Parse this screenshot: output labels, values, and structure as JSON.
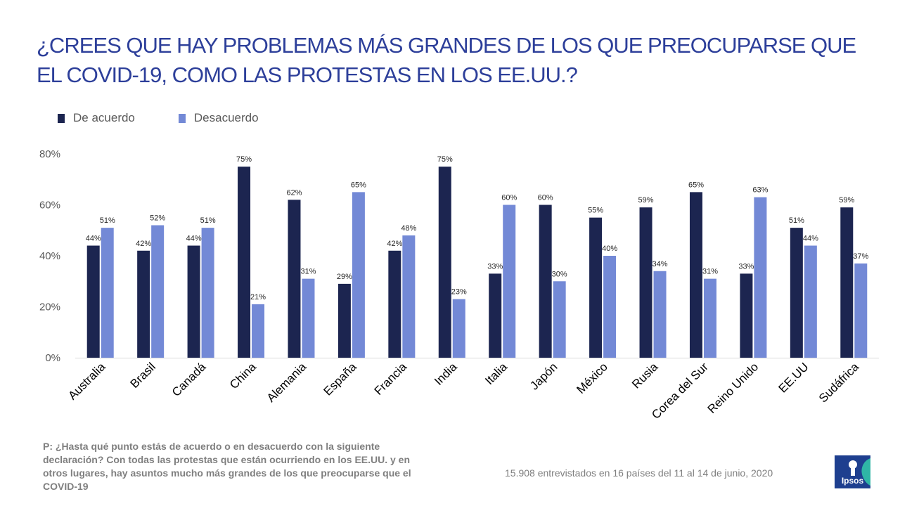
{
  "title": "¿CREES QUE HAY PROBLEMAS MÁS GRANDES DE LOS QUE PREOCUPARSE QUE EL COVID-19, COMO LAS PROTESTAS EN LOS EE.UU.?",
  "footnote": "P: ¿Hasta qué punto estás de acuerdo o en desacuerdo con la siguiente declaración? Con todas las protestas que están ocurriendo en los EE.UU. y en otros lugares, hay asuntos mucho más grandes de los que preocuparse que el COVID-19",
  "sample_note": "15.908 entrevistados en 16 países del  11 al 14 de junio, 2020",
  "logo": {
    "text": "Ipsos"
  },
  "colors": {
    "title": "#2d3f9a",
    "series_1": "#1c2550",
    "series_2": "#7389d6"
  },
  "chart_data": {
    "type": "bar",
    "categories": [
      "Australia",
      "Brasil",
      "Canadá",
      "China",
      "Alemania",
      "España",
      "Francia",
      "India",
      "Italia",
      "Japón",
      "México",
      "Rusia",
      "Corea del Sur",
      "Reino Unido",
      "EE.UU",
      "Sudáfrica"
    ],
    "series": [
      {
        "name": "De acuerdo",
        "values": [
          44,
          42,
          44,
          75,
          62,
          29,
          42,
          75,
          33,
          60,
          55,
          59,
          65,
          33,
          51,
          59
        ]
      },
      {
        "name": "Desacuerdo",
        "values": [
          51,
          52,
          51,
          21,
          31,
          65,
          48,
          23,
          60,
          30,
          40,
          34,
          31,
          63,
          44,
          37
        ]
      }
    ],
    "value_labels": [
      [
        "44%",
        "42%",
        "44%",
        "75%",
        "62%",
        "29%",
        "42%",
        "75%",
        "33%",
        "60%",
        "55%",
        "59%",
        "65%",
        "33%",
        "51%",
        "59%"
      ],
      [
        "51%",
        "52%",
        "51%",
        "21%",
        "31%",
        "65%",
        "48%",
        "23%",
        "60%",
        "30%",
        "40%",
        "34%",
        "31%",
        "63%",
        "44%",
        "37%"
      ]
    ],
    "ylim": [
      0,
      80
    ],
    "yticks": [
      "0%",
      "20%",
      "40%",
      "60%",
      "80%"
    ],
    "ytick_values": [
      0,
      20,
      40,
      60,
      80
    ],
    "legend_position": "top-left",
    "grid": false
  }
}
